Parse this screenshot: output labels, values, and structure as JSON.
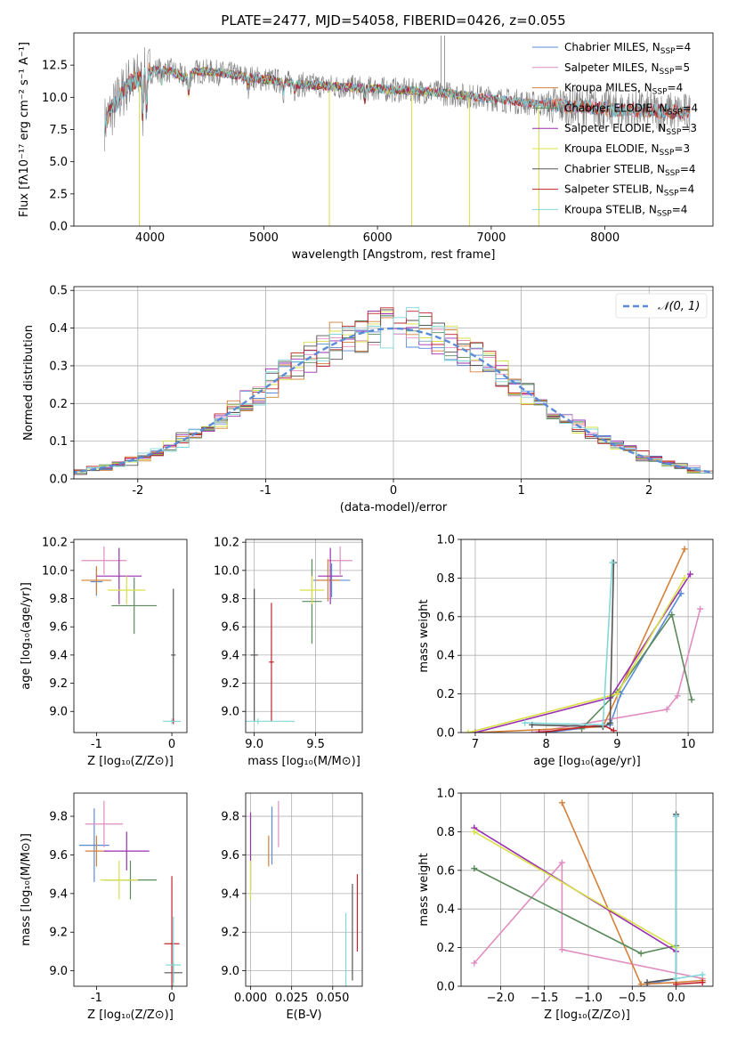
{
  "colors": {
    "Chabrier MILES": "#5b8bd6",
    "Salpeter MILES": "#e08dc0",
    "Kroupa MILES": "#d4803a",
    "Chabrier ELODIE": "#5a8a5a",
    "Salpeter ELODIE": "#9a2fb0",
    "Kroupa ELODIE": "#d8e046",
    "Chabrier STELIB": "#555555",
    "Salpeter STELIB": "#c0242c",
    "Kroupa STELIB": "#82d8d8",
    "data": "#7f7f7f"
  },
  "chart_data": [
    {
      "id": "spectrum",
      "type": "line",
      "title": "PLATE=2477, MJD=54058, FIBERID=0426, z=0.055",
      "xlabel": "wavelength [Angstrom, rest frame]",
      "ylabel": "Flux [fλ10⁻¹⁷ erg cm⁻² s⁻¹ A⁻¹]",
      "xlim": [
        3330,
        8950
      ],
      "ylim": [
        0,
        15
      ],
      "xticks": [
        4000,
        5000,
        6000,
        7000,
        8000
      ],
      "yticks": [
        0.0,
        2.5,
        5.0,
        7.5,
        10.0,
        12.5
      ],
      "legend": {
        "position": "top-right",
        "entries": [
          {
            "label": "Chabrier MILES, N",
            "sub": "SSP",
            "suffix": "=4",
            "color": "Chabrier MILES"
          },
          {
            "label": "Salpeter MILES, N",
            "sub": "SSP",
            "suffix": "=5",
            "color": "Salpeter MILES"
          },
          {
            "label": "Kroupa MILES, N",
            "sub": "SSP",
            "suffix": "=4",
            "color": "Kroupa MILES"
          },
          {
            "label": "Chabrier ELODIE, N",
            "sub": "SSP",
            "suffix": "=4",
            "color": "Chabrier ELODIE"
          },
          {
            "label": "Salpeter ELODIE, N",
            "sub": "SSP",
            "suffix": "=3",
            "color": "Salpeter ELODIE"
          },
          {
            "label": "Kroupa ELODIE, N",
            "sub": "SSP",
            "suffix": "=3",
            "color": "Kroupa ELODIE"
          },
          {
            "label": "Chabrier STELIB, N",
            "sub": "SSP",
            "suffix": "=4",
            "color": "Chabrier STELIB"
          },
          {
            "label": "Salpeter STELIB, N",
            "sub": "SSP",
            "suffix": "=4",
            "color": "Salpeter STELIB"
          },
          {
            "label": "Kroupa STELIB, N",
            "sub": "SSP",
            "suffix": "=4",
            "color": "Kroupa STELIB"
          }
        ]
      },
      "data_continuum": [
        [
          3600,
          8.0
        ],
        [
          3700,
          9.5
        ],
        [
          3800,
          11.0
        ],
        [
          3900,
          11.5
        ],
        [
          4000,
          12.0
        ],
        [
          4100,
          12.2
        ],
        [
          4200,
          12.0
        ],
        [
          4300,
          11.5
        ],
        [
          4400,
          12.0
        ],
        [
          4500,
          12.0
        ],
        [
          4700,
          11.8
        ],
        [
          4900,
          11.5
        ],
        [
          5100,
          11.3
        ],
        [
          5300,
          11.0
        ],
        [
          5500,
          10.9
        ],
        [
          5700,
          10.8
        ],
        [
          5900,
          10.7
        ],
        [
          6100,
          10.6
        ],
        [
          6300,
          10.5
        ],
        [
          6500,
          10.4
        ],
        [
          6700,
          10.2
        ],
        [
          6900,
          10.0
        ],
        [
          7100,
          9.8
        ],
        [
          7300,
          9.6
        ],
        [
          7500,
          9.4
        ],
        [
          7700,
          9.3
        ],
        [
          7900,
          9.2
        ],
        [
          8100,
          9.0
        ],
        [
          8300,
          9.0
        ],
        [
          8500,
          8.9
        ],
        [
          8700,
          8.8
        ]
      ]
    },
    {
      "id": "residuals",
      "type": "step",
      "xlabel": "(data-model)/error",
      "ylabel": "Normed distribution",
      "xlim": [
        -2.5,
        2.5
      ],
      "ylim": [
        0,
        0.51
      ],
      "xticks": [
        -2,
        -1,
        0,
        1,
        2
      ],
      "yticks": [
        0.0,
        0.1,
        0.2,
        0.3,
        0.4,
        0.5
      ],
      "legend": {
        "position": "top-right",
        "label": "𝒩(0, 1)"
      },
      "reference": {
        "type": "gaussian",
        "mean": 0,
        "sigma": 1
      }
    },
    {
      "id": "age_vs_Z",
      "type": "errorbar",
      "xlabel": "Z [log₁₀(Z/Z⊙)]",
      "ylabel": "age  [log₁₀(age/yr)]",
      "xlim": [
        -1.3,
        0.2
      ],
      "ylim": [
        8.85,
        10.22
      ],
      "xticks": [
        -1,
        0
      ],
      "yticks": [
        9.0,
        9.2,
        9.4,
        9.6,
        9.8,
        10.0,
        10.2
      ],
      "points": [
        {
          "m": "Chabrier MILES",
          "x": -1.0,
          "y": 9.92,
          "xe": 0.08,
          "ye": 0.1
        },
        {
          "m": "Salpeter MILES",
          "x": -0.9,
          "y": 10.07,
          "xe": 0.3,
          "ye": 0.1
        },
        {
          "m": "Kroupa MILES",
          "x": -1.0,
          "y": 9.93,
          "xe": 0.2,
          "ye": 0.1
        },
        {
          "m": "Chabrier ELODIE",
          "x": -0.5,
          "y": 9.75,
          "xe": 0.3,
          "ye": 0.2
        },
        {
          "m": "Salpeter ELODIE",
          "x": -0.7,
          "y": 9.96,
          "xe": 0.3,
          "ye": 0.2
        },
        {
          "m": "Kroupa ELODIE",
          "x": -0.6,
          "y": 9.86,
          "xe": 0.25,
          "ye": 0.1
        },
        {
          "m": "Chabrier STELIB",
          "x": 0.02,
          "y": 9.4,
          "xe": 0.03,
          "ye": 0.47
        },
        {
          "m": "Salpeter STELIB",
          "x": 0.02,
          "y": 8.93,
          "xe": 0.02,
          "ye": 0.02
        },
        {
          "m": "Kroupa STELIB",
          "x": 0.0,
          "y": 8.93,
          "xe": 0.12,
          "ye": 0.02
        }
      ]
    },
    {
      "id": "age_vs_mass",
      "type": "errorbar",
      "xlabel": "mass [log₁₀(M/M⊙)]",
      "ylabel": "",
      "xlim": [
        8.93,
        9.88
      ],
      "ylim": [
        8.85,
        10.22
      ],
      "xticks": [
        9.0,
        9.5
      ],
      "yticks": [
        9.0,
        9.2,
        9.4,
        9.6,
        9.8,
        10.0,
        10.2
      ],
      "points": [
        {
          "m": "Chabrier MILES",
          "x": 9.63,
          "y": 9.93,
          "xe": 0.15,
          "ye": 0.12
        },
        {
          "m": "Salpeter MILES",
          "x": 9.7,
          "y": 10.07,
          "xe": 0.1,
          "ye": 0.1
        },
        {
          "m": "Kroupa MILES",
          "x": 9.6,
          "y": 9.93,
          "xe": 0.1,
          "ye": 0.15
        },
        {
          "m": "Chabrier ELODIE",
          "x": 9.47,
          "y": 9.78,
          "xe": 0.08,
          "ye": 0.3
        },
        {
          "m": "Salpeter ELODIE",
          "x": 9.62,
          "y": 9.96,
          "xe": 0.1,
          "ye": 0.2
        },
        {
          "m": "Kroupa ELODIE",
          "x": 9.47,
          "y": 9.86,
          "xe": 0.1,
          "ye": 0.1
        },
        {
          "m": "Chabrier STELIB",
          "x": 9.0,
          "y": 9.4,
          "xe": 0.03,
          "ye": 0.47
        },
        {
          "m": "Salpeter STELIB",
          "x": 9.14,
          "y": 9.35,
          "xe": 0.02,
          "ye": 0.42
        },
        {
          "m": "Kroupa STELIB",
          "x": 9.03,
          "y": 8.93,
          "xe": 0.3,
          "ye": 0.02
        }
      ]
    },
    {
      "id": "mw_vs_age",
      "type": "line",
      "xlabel": "age  [log₁₀(age/yr)]",
      "ylabel": "mass weight",
      "xlim": [
        6.8,
        10.35
      ],
      "ylim": [
        0,
        1.0
      ],
      "xticks": [
        7,
        8,
        9,
        10
      ],
      "yticks": [
        0.0,
        0.2,
        0.4,
        0.6,
        0.8,
        1.0
      ],
      "series": [
        {
          "m": "Chabrier MILES",
          "x": [
            8.0,
            8.9,
            9.05,
            9.9
          ],
          "y": [
            0.0,
            0.04,
            0.2,
            0.72
          ]
        },
        {
          "m": "Salpeter MILES",
          "x": [
            7.8,
            9.7,
            9.85,
            10.17
          ],
          "y": [
            0.0,
            0.12,
            0.19,
            0.64
          ]
        },
        {
          "m": "Kroupa MILES",
          "x": [
            7.0,
            8.8,
            9.95
          ],
          "y": [
            0.0,
            0.03,
            0.95
          ]
        },
        {
          "m": "Chabrier ELODIE",
          "x": [
            8.5,
            9.0,
            9.77,
            10.05
          ],
          "y": [
            0.02,
            0.21,
            0.61,
            0.17
          ]
        },
        {
          "m": "Salpeter ELODIE",
          "x": [
            7.0,
            8.9,
            10.03
          ],
          "y": [
            0.0,
            0.18,
            0.82
          ]
        },
        {
          "m": "Kroupa ELODIE",
          "x": [
            6.9,
            9.0,
            9.95
          ],
          "y": [
            0.0,
            0.2,
            0.8
          ]
        },
        {
          "m": "Chabrier STELIB",
          "x": [
            7.8,
            8.8,
            8.9,
            8.95
          ],
          "y": [
            0.04,
            0.03,
            0.05,
            0.88
          ]
        },
        {
          "m": "Salpeter STELIB",
          "x": [
            7.9,
            8.8,
            8.95
          ],
          "y": [
            0.0,
            0.04,
            0.01
          ]
        },
        {
          "m": "Kroupa STELIB",
          "x": [
            7.7,
            8.8,
            8.93
          ],
          "y": [
            0.05,
            0.04,
            0.88
          ]
        }
      ]
    },
    {
      "id": "mass_vs_Z",
      "type": "errorbar",
      "xlabel": "Z [log₁₀(Z/Z⊙)]",
      "ylabel": "mass [log₁₀(M/M⊙)]",
      "xlim": [
        -1.3,
        0.2
      ],
      "ylim": [
        8.92,
        9.92
      ],
      "xticks": [
        -1,
        0
      ],
      "yticks": [
        9.0,
        9.2,
        9.4,
        9.6,
        9.8
      ],
      "points": [
        {
          "m": "Chabrier MILES",
          "x": -1.03,
          "y": 9.65,
          "xe": 0.2,
          "ye": 0.19
        },
        {
          "m": "Salpeter MILES",
          "x": -0.9,
          "y": 9.76,
          "xe": 0.25,
          "ye": 0.12
        },
        {
          "m": "Kroupa MILES",
          "x": -1.0,
          "y": 9.62,
          "xe": 0.15,
          "ye": 0.08
        },
        {
          "m": "Chabrier ELODIE",
          "x": -0.55,
          "y": 9.47,
          "xe": 0.35,
          "ye": 0.1
        },
        {
          "m": "Salpeter ELODIE",
          "x": -0.6,
          "y": 9.62,
          "xe": 0.3,
          "ye": 0.1
        },
        {
          "m": "Kroupa ELODIE",
          "x": -0.7,
          "y": 9.47,
          "xe": 0.25,
          "ye": 0.1
        },
        {
          "m": "Chabrier STELIB",
          "x": 0.02,
          "y": 8.99,
          "xe": 0.12,
          "ye": 0.05
        },
        {
          "m": "Salpeter STELIB",
          "x": 0.0,
          "y": 9.14,
          "xe": 0.1,
          "ye": 0.35
        },
        {
          "m": "Kroupa STELIB",
          "x": 0.02,
          "y": 9.03,
          "xe": 0.1,
          "ye": 0.25
        }
      ]
    },
    {
      "id": "mass_vs_ebv",
      "type": "errorbar",
      "xlabel": "E(B-V)",
      "ylabel": "",
      "xlim": [
        -0.003,
        0.068
      ],
      "ylim": [
        8.92,
        9.92
      ],
      "xticks": [
        0.0,
        0.025,
        0.05
      ],
      "yticks": [
        9.0,
        9.2,
        9.4,
        9.6,
        9.8
      ],
      "xticklabels": [
        "0.000",
        "0.025",
        "0.050"
      ],
      "points": [
        {
          "m": "Chabrier MILES",
          "x": 0.013,
          "y": 9.7,
          "xe": 0,
          "ye": 0.15
        },
        {
          "m": "Salpeter MILES",
          "x": 0.017,
          "y": 9.76,
          "xe": 0,
          "ye": 0.12
        },
        {
          "m": "Kroupa MILES",
          "x": 0.011,
          "y": 9.62,
          "xe": 0,
          "ye": 0.08
        },
        {
          "m": "Salpeter ELODIE",
          "x": 0.0,
          "y": 9.62,
          "xe": 0,
          "ye": 0.2
        },
        {
          "m": "Kroupa ELODIE",
          "x": 0.0,
          "y": 9.47,
          "xe": 0,
          "ye": 0.1
        },
        {
          "m": "Chabrier STELIB",
          "x": 0.062,
          "y": 9.2,
          "xe": 0,
          "ye": 0.25
        },
        {
          "m": "Salpeter STELIB",
          "x": 0.065,
          "y": 9.3,
          "xe": 0,
          "ye": 0.2
        },
        {
          "m": "Kroupa STELIB",
          "x": 0.058,
          "y": 9.1,
          "xe": 0,
          "ye": 0.2
        }
      ]
    },
    {
      "id": "mw_vs_Z",
      "type": "line",
      "xlabel": "Z [log₁₀(Z/Z⊙)]",
      "ylabel": "mass weight",
      "xlim": [
        -2.45,
        0.42
      ],
      "ylim": [
        0,
        1.0
      ],
      "xticks": [
        -2.0,
        -1.5,
        -1.0,
        -0.5,
        0.0
      ],
      "xticklabels": [
        "−2.0",
        "−1.5",
        "−1.0",
        "−0.5",
        "0.0"
      ],
      "yticks": [
        0.0,
        0.2,
        0.4,
        0.6,
        0.8,
        1.0
      ],
      "series": [
        {
          "m": "Chabrier MILES",
          "x": [
            -0.33,
            0.0,
            0.0
          ],
          "y": [
            0.01,
            0.04,
            0.88
          ]
        },
        {
          "m": "Salpeter MILES",
          "x": [
            -2.3,
            -1.3,
            -1.3,
            0.3
          ],
          "y": [
            0.12,
            0.64,
            0.19,
            0.04
          ]
        },
        {
          "m": "Kroupa MILES",
          "x": [
            -1.3,
            -0.4,
            0.0,
            0.3
          ],
          "y": [
            0.95,
            0.01,
            0.02,
            0.03
          ]
        },
        {
          "m": "Chabrier ELODIE",
          "x": [
            -2.3,
            -0.4,
            0.0
          ],
          "y": [
            0.61,
            0.17,
            0.21
          ]
        },
        {
          "m": "Salpeter ELODIE",
          "x": [
            -2.3,
            0.0
          ],
          "y": [
            0.82,
            0.18
          ]
        },
        {
          "m": "Kroupa ELODIE",
          "x": [
            -2.3,
            0.0
          ],
          "y": [
            0.8,
            0.2
          ]
        },
        {
          "m": "Chabrier STELIB",
          "x": [
            -0.33,
            0.0,
            0.0
          ],
          "y": [
            0.02,
            0.04,
            0.89
          ]
        },
        {
          "m": "Salpeter STELIB",
          "x": [
            0.0,
            0.3
          ],
          "y": [
            0.01,
            0.02
          ]
        },
        {
          "m": "Kroupa STELIB",
          "x": [
            0.0,
            0.0,
            0.3
          ],
          "y": [
            0.88,
            0.04,
            0.06
          ]
        }
      ]
    }
  ]
}
